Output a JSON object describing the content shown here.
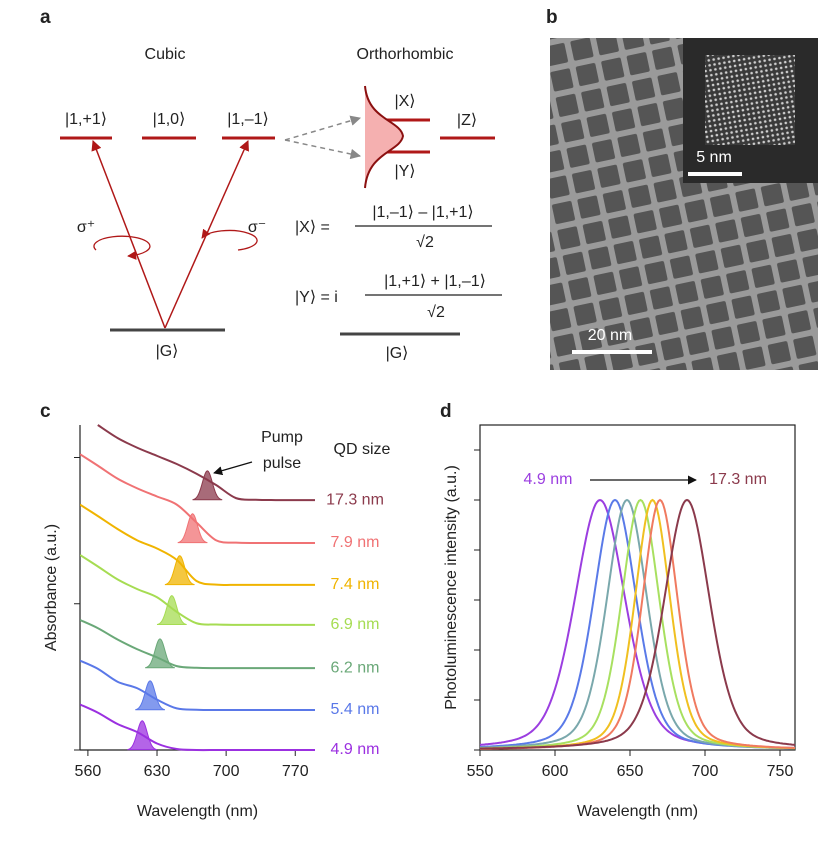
{
  "figure": {
    "a": {
      "letter": "a",
      "cubic": "Cubic",
      "orthorhombic": "Orthorhombic",
      "state_plus": "|1,+1⟩",
      "state_zero": "|1,0⟩",
      "state_minus": "|1,–1⟩",
      "state_x": "|X⟩",
      "state_y": "|Y⟩",
      "state_z": "|Z⟩",
      "sigma_plus": "σ⁺",
      "sigma_minus": "σ⁻",
      "ground_cubic": "|G⟩",
      "ground_ortho": "|G⟩",
      "eq_x_lhs": "|X⟩ =",
      "eq_x_num": "|1,–1⟩ – |1,+1⟩",
      "eq_x_den": "√2",
      "eq_y_lhs": "|Y⟩ = i",
      "eq_y_num": "|1,+1⟩ + |1,–1⟩",
      "eq_y_den": "√2"
    },
    "b": {
      "letter": "b",
      "inset_scale": "5 nm",
      "main_scale": "20 nm"
    }
  },
  "chart_data": [
    {
      "type": "line",
      "panel": "c",
      "xlabel": "Wavelength (nm)",
      "ylabel": "Absorbance (a.u.)",
      "legend_title": "QD size",
      "annotation": "Pump\npulse",
      "xlim": [
        552,
        790
      ],
      "xticks": [
        560,
        630,
        700,
        770
      ],
      "ylim": [
        0,
        10
      ],
      "yticks": [
        0,
        4.5,
        9
      ],
      "x": [
        552,
        570,
        590,
        610,
        630,
        650,
        670,
        690,
        710,
        730,
        750,
        770,
        790
      ],
      "series": [
        {
          "name": "17.3 nm",
          "color": "#8b3a4c",
          "pump_peak": 681,
          "pump_height": 0.9,
          "values": [
            null,
            10.0,
            9.6,
            9.3,
            9.05,
            8.8,
            8.5,
            8.15,
            7.75,
            7.7,
            7.69,
            7.69,
            7.69
          ]
        },
        {
          "name": "7.9 nm",
          "color": "#f07274",
          "pump_peak": 666,
          "pump_height": 0.9,
          "values": [
            9.1,
            8.75,
            8.35,
            8.05,
            7.8,
            7.55,
            7.0,
            6.45,
            6.38,
            6.37,
            6.37,
            6.37,
            6.37
          ]
        },
        {
          "name": "7.4 nm",
          "color": "#f0b400",
          "pump_peak": 653,
          "pump_height": 0.9,
          "values": [
            7.55,
            7.2,
            6.8,
            6.45,
            6.2,
            5.85,
            5.2,
            5.09,
            5.08,
            5.08,
            5.08,
            5.08,
            5.08
          ]
        },
        {
          "name": "6.9 nm",
          "color": "#a6dc52",
          "pump_peak": 645,
          "pump_height": 0.9,
          "values": [
            6.0,
            5.65,
            5.25,
            4.95,
            4.7,
            4.25,
            3.9,
            3.86,
            3.85,
            3.85,
            3.85,
            3.85,
            3.85
          ]
        },
        {
          "name": "6.2 nm",
          "color": "#6aa878",
          "pump_peak": 633,
          "pump_height": 0.9,
          "values": [
            4.0,
            3.75,
            3.4,
            3.1,
            2.85,
            2.58,
            2.53,
            2.52,
            2.52,
            2.52,
            2.52,
            2.52,
            2.52
          ]
        },
        {
          "name": "5.4 nm",
          "color": "#5a78e8",
          "pump_peak": 623,
          "pump_height": 0.9,
          "values": [
            2.75,
            2.5,
            2.1,
            1.9,
            1.55,
            1.28,
            1.24,
            1.23,
            1.23,
            1.23,
            1.23,
            1.23,
            1.23
          ]
        },
        {
          "name": "4.9 nm",
          "color": "#9b30e0",
          "pump_peak": 615,
          "pump_height": 0.9,
          "values": [
            1.4,
            1.15,
            0.8,
            0.55,
            0.2,
            0.03,
            0,
            0,
            0,
            0,
            0,
            0,
            0
          ]
        }
      ]
    },
    {
      "type": "peaks",
      "panel": "d",
      "xlabel": "Wavelength (nm)",
      "ylabel": "Photoluminescence intensity (a.u.)",
      "annotation_start": "4.9 nm",
      "annotation_end": "17.3 nm",
      "xlim": [
        550,
        760
      ],
      "xticks": [
        550,
        600,
        650,
        700,
        750
      ],
      "ylim": [
        0,
        1.3
      ],
      "yticks": [
        0,
        0.2,
        0.4,
        0.6,
        0.8,
        1.0,
        1.2
      ],
      "series": [
        {
          "color": "#9b3ee0",
          "peak": 630,
          "fwhm": 40,
          "height": 1
        },
        {
          "color": "#5a7ae8",
          "peak": 640,
          "fwhm": 34,
          "height": 1
        },
        {
          "color": "#7aa8ac",
          "peak": 648,
          "fwhm": 32,
          "height": 1
        },
        {
          "color": "#a8e060",
          "peak": 657,
          "fwhm": 30,
          "height": 1
        },
        {
          "color": "#f0c020",
          "peak": 665,
          "fwhm": 28,
          "height": 1
        },
        {
          "color": "#f07a60",
          "peak": 670,
          "fwhm": 28,
          "height": 1
        },
        {
          "color": "#8b3a4c",
          "peak": 688,
          "fwhm": 36,
          "height": 1
        }
      ]
    }
  ]
}
